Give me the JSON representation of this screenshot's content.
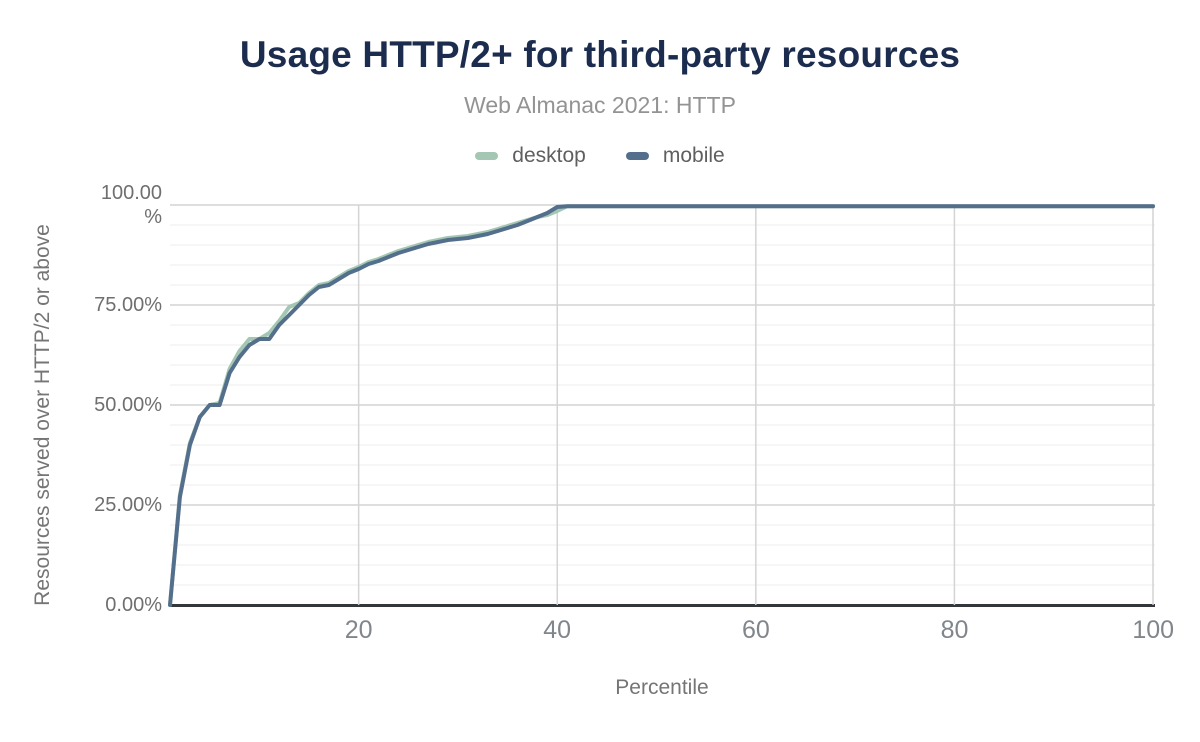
{
  "header": {
    "title": "Usage HTTP/2+ for third-party resources",
    "subtitle": "Web Almanac 2021: HTTP"
  },
  "colors": {
    "title_navy": "#1b2c4e",
    "axis_text": "#6f6f6f",
    "grid_major": "#d4d4d4",
    "grid_minor": "#ededed",
    "axis_line": "#33373b",
    "desktop": "#a3c7b3",
    "mobile": "#546f8c"
  },
  "chart_data": {
    "type": "line",
    "title": "Usage HTTP/2+ for third-party resources",
    "subtitle": "Web Almanac 2021: HTTP",
    "xlabel": "Percentile",
    "ylabel": "Resources served over HTTP/2 or above",
    "xlim": [
      1,
      100
    ],
    "ylim": [
      0,
      100
    ],
    "x_ticks": [
      20,
      40,
      60,
      80,
      100
    ],
    "y_ticks": [
      "100.00 %",
      "75.00%",
      "50.00%",
      "25.00%",
      "0.00%"
    ],
    "y_tick_values": [
      100,
      75,
      50,
      25,
      0
    ],
    "grid": {
      "vertical_major": true,
      "horizontal_major": true,
      "horizontal_minor_step": 5
    },
    "legend_position": "top-center",
    "series": [
      {
        "name": "desktop",
        "color": "#a3c7b3",
        "points": [
          [
            1,
            0
          ],
          [
            2,
            27.5
          ],
          [
            3,
            40.5
          ],
          [
            4,
            47
          ],
          [
            5,
            50
          ],
          [
            6,
            50.5
          ],
          [
            7,
            59
          ],
          [
            8,
            63.5
          ],
          [
            9,
            66.5
          ],
          [
            10,
            66.5
          ],
          [
            11,
            68
          ],
          [
            12,
            71
          ],
          [
            13,
            74.5
          ],
          [
            14,
            75.5
          ],
          [
            15,
            78
          ],
          [
            16,
            80
          ],
          [
            17,
            80.5
          ],
          [
            18,
            82
          ],
          [
            19,
            83.5
          ],
          [
            20,
            84.5
          ],
          [
            21,
            85.75
          ],
          [
            22,
            86.5
          ],
          [
            23,
            87.5
          ],
          [
            24,
            88.5
          ],
          [
            25,
            89.25
          ],
          [
            26,
            90
          ],
          [
            27,
            90.75
          ],
          [
            28,
            91.25
          ],
          [
            29,
            91.75
          ],
          [
            30,
            92
          ],
          [
            31,
            92.25
          ],
          [
            32,
            92.75
          ],
          [
            33,
            93.25
          ],
          [
            34,
            94
          ],
          [
            35,
            94.75
          ],
          [
            36,
            95.5
          ],
          [
            37,
            96.25
          ],
          [
            38,
            97
          ],
          [
            39,
            97.5
          ],
          [
            40,
            98.5
          ],
          [
            41,
            99.7
          ],
          [
            50,
            99.7
          ],
          [
            60,
            99.7
          ],
          [
            70,
            99.7
          ],
          [
            80,
            99.7
          ],
          [
            90,
            99.7
          ],
          [
            100,
            99.7
          ]
        ]
      },
      {
        "name": "mobile",
        "color": "#546f8c",
        "points": [
          [
            1,
            0
          ],
          [
            2,
            27
          ],
          [
            3,
            40
          ],
          [
            4,
            47
          ],
          [
            5,
            50
          ],
          [
            6,
            50
          ],
          [
            7,
            58
          ],
          [
            8,
            62
          ],
          [
            9,
            65
          ],
          [
            10,
            66.5
          ],
          [
            11,
            66.5
          ],
          [
            12,
            70
          ],
          [
            13,
            72.5
          ],
          [
            14,
            75
          ],
          [
            15,
            77.5
          ],
          [
            16,
            79.5
          ],
          [
            17,
            80
          ],
          [
            18,
            81.5
          ],
          [
            19,
            83
          ],
          [
            20,
            84
          ],
          [
            21,
            85.25
          ],
          [
            22,
            86
          ],
          [
            23,
            87
          ],
          [
            24,
            88
          ],
          [
            25,
            88.75
          ],
          [
            26,
            89.5
          ],
          [
            27,
            90.25
          ],
          [
            28,
            90.75
          ],
          [
            29,
            91.25
          ],
          [
            30,
            91.5
          ],
          [
            31,
            91.75
          ],
          [
            32,
            92.25
          ],
          [
            33,
            92.75
          ],
          [
            34,
            93.5
          ],
          [
            35,
            94.25
          ],
          [
            36,
            95
          ],
          [
            37,
            96
          ],
          [
            38,
            97
          ],
          [
            39,
            98
          ],
          [
            40,
            99.5
          ],
          [
            41,
            99.7
          ],
          [
            50,
            99.7
          ],
          [
            60,
            99.7
          ],
          [
            70,
            99.7
          ],
          [
            80,
            99.7
          ],
          [
            90,
            99.7
          ],
          [
            100,
            99.7
          ]
        ]
      }
    ]
  }
}
